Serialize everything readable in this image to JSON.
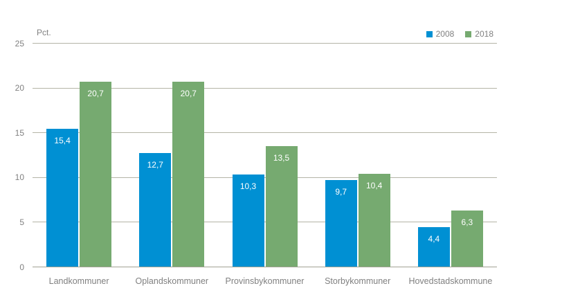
{
  "chart": {
    "unit_label": "Pct.",
    "background_color": "#ffffff",
    "grid_color": "#b4b4a6",
    "axis_color": "#a2a294",
    "text_color": "#808080",
    "value_label_color": "#ffffff"
  },
  "chart_data": {
    "type": "bar",
    "title": "",
    "ylabel": "Pct.",
    "xlabel": "",
    "categories": [
      "Landkommuner",
      "Oplandskommuner",
      "Provinsbykommuner",
      "Storbykommuner",
      "Hovedstadskommune"
    ],
    "series": [
      {
        "name": "2008",
        "color": "#0090d3",
        "values": [
          15.4,
          12.7,
          10.3,
          9.7,
          4.4
        ],
        "value_labels": [
          "15,4",
          "12,7",
          "10,3",
          "9,7",
          "4,4"
        ]
      },
      {
        "name": "2018",
        "color": "#76aa70",
        "values": [
          20.7,
          20.7,
          13.5,
          10.4,
          6.3
        ],
        "value_labels": [
          "20,7",
          "20,7",
          "13,5",
          "10,4",
          "6,3"
        ]
      }
    ],
    "y_axis": {
      "min": 0,
      "max": 25,
      "ticks": [
        0,
        5,
        10,
        15,
        20,
        25
      ]
    },
    "grid": true,
    "legend_position": "top-right"
  }
}
